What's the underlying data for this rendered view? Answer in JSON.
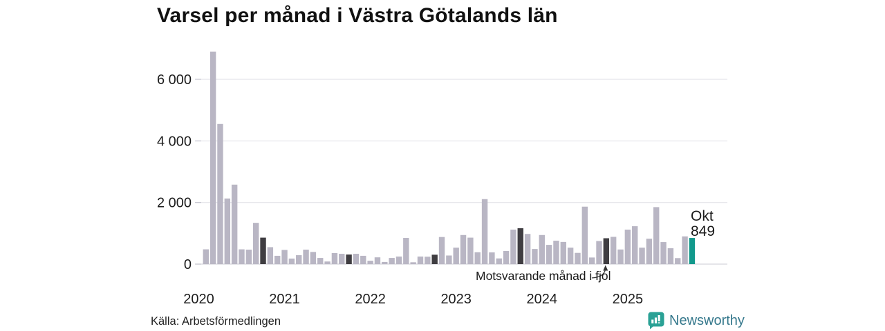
{
  "title": "Varsel per månad i Västra Götalands län",
  "source": "Källa: Arbetsförmedlingen",
  "branding": {
    "name": "Newsworthy"
  },
  "annotation": {
    "text": "Motsvarande månad i fjol"
  },
  "last_point_label": {
    "month": "Okt",
    "value": "849"
  },
  "colors": {
    "bar": "#b9b6c4",
    "bar_fjol": "#3f3d41",
    "bar_current": "#12998c",
    "grid": "#e4e4ea",
    "baseline": "#d5d5dc",
    "tick": "#c6c6d0",
    "text": "#1d1d1d",
    "arrow": "#333333",
    "brand_icon": "#2aa195",
    "brand_text": "#35788c"
  },
  "chart_data": {
    "type": "bar",
    "title": "Varsel per månad i Västra Götalands län",
    "xlabel": "",
    "ylabel": "",
    "ylim": [
      0,
      7200
    ],
    "grid": true,
    "y_ticks": [
      {
        "value": 0,
        "label": "0"
      },
      {
        "value": 2000,
        "label": "2 000"
      },
      {
        "value": 4000,
        "label": "4 000"
      },
      {
        "value": 6000,
        "label": "6 000"
      }
    ],
    "year_ticks": [
      {
        "label": "2020",
        "jan_index": -1
      },
      {
        "label": "2021",
        "jan_index": 11
      },
      {
        "label": "2022",
        "jan_index": 23
      },
      {
        "label": "2023",
        "jan_index": 35
      },
      {
        "label": "2024",
        "jan_index": 47
      },
      {
        "label": "2025",
        "jan_index": 59
      }
    ],
    "highlight_note": "dark bars mark October of each previous year; teal bar is the latest month (Okt 2025 = 849)",
    "bars": [
      {
        "label": "feb 2020",
        "value": 480,
        "style": "default"
      },
      {
        "label": "mar 2020",
        "value": 6900,
        "style": "default"
      },
      {
        "label": "apr 2020",
        "value": 4550,
        "style": "default"
      },
      {
        "label": "maj 2020",
        "value": 2130,
        "style": "default"
      },
      {
        "label": "jun 2020",
        "value": 2580,
        "style": "default"
      },
      {
        "label": "jul 2020",
        "value": 480,
        "style": "default"
      },
      {
        "label": "aug 2020",
        "value": 470,
        "style": "default"
      },
      {
        "label": "sep 2020",
        "value": 1340,
        "style": "default"
      },
      {
        "label": "okt 2020",
        "value": 860,
        "style": "fjol"
      },
      {
        "label": "nov 2020",
        "value": 550,
        "style": "default"
      },
      {
        "label": "dec 2020",
        "value": 270,
        "style": "default"
      },
      {
        "label": "jan 2021",
        "value": 460,
        "style": "default"
      },
      {
        "label": "feb 2021",
        "value": 180,
        "style": "default"
      },
      {
        "label": "mar 2021",
        "value": 290,
        "style": "default"
      },
      {
        "label": "apr 2021",
        "value": 470,
        "style": "default"
      },
      {
        "label": "maj 2021",
        "value": 395,
        "style": "default"
      },
      {
        "label": "jun 2021",
        "value": 200,
        "style": "default"
      },
      {
        "label": "jul 2021",
        "value": 85,
        "style": "default"
      },
      {
        "label": "aug 2021",
        "value": 360,
        "style": "default"
      },
      {
        "label": "sep 2021",
        "value": 335,
        "style": "default"
      },
      {
        "label": "okt 2021",
        "value": 310,
        "style": "fjol"
      },
      {
        "label": "nov 2021",
        "value": 335,
        "style": "default"
      },
      {
        "label": "dec 2021",
        "value": 270,
        "style": "default"
      },
      {
        "label": "jan 2022",
        "value": 110,
        "style": "default"
      },
      {
        "label": "feb 2022",
        "value": 220,
        "style": "default"
      },
      {
        "label": "mar 2022",
        "value": 70,
        "style": "default"
      },
      {
        "label": "apr 2022",
        "value": 200,
        "style": "default"
      },
      {
        "label": "maj 2022",
        "value": 245,
        "style": "default"
      },
      {
        "label": "jun 2022",
        "value": 850,
        "style": "default"
      },
      {
        "label": "jul 2022",
        "value": 60,
        "style": "default"
      },
      {
        "label": "aug 2022",
        "value": 245,
        "style": "default"
      },
      {
        "label": "sep 2022",
        "value": 240,
        "style": "default"
      },
      {
        "label": "okt 2022",
        "value": 305,
        "style": "fjol"
      },
      {
        "label": "nov 2022",
        "value": 880,
        "style": "default"
      },
      {
        "label": "dec 2022",
        "value": 280,
        "style": "default"
      },
      {
        "label": "jan 2023",
        "value": 535,
        "style": "default"
      },
      {
        "label": "feb 2023",
        "value": 945,
        "style": "default"
      },
      {
        "label": "mar 2023",
        "value": 860,
        "style": "default"
      },
      {
        "label": "apr 2023",
        "value": 385,
        "style": "default"
      },
      {
        "label": "maj 2023",
        "value": 2110,
        "style": "default"
      },
      {
        "label": "jun 2023",
        "value": 380,
        "style": "default"
      },
      {
        "label": "jul 2023",
        "value": 185,
        "style": "default"
      },
      {
        "label": "aug 2023",
        "value": 425,
        "style": "default"
      },
      {
        "label": "sep 2023",
        "value": 1120,
        "style": "default"
      },
      {
        "label": "okt 2023",
        "value": 1165,
        "style": "fjol"
      },
      {
        "label": "nov 2023",
        "value": 980,
        "style": "default"
      },
      {
        "label": "dec 2023",
        "value": 490,
        "style": "default"
      },
      {
        "label": "jan 2024",
        "value": 945,
        "style": "default"
      },
      {
        "label": "feb 2024",
        "value": 625,
        "style": "default"
      },
      {
        "label": "mar 2024",
        "value": 760,
        "style": "default"
      },
      {
        "label": "apr 2024",
        "value": 720,
        "style": "default"
      },
      {
        "label": "maj 2024",
        "value": 535,
        "style": "default"
      },
      {
        "label": "jun 2024",
        "value": 365,
        "style": "default"
      },
      {
        "label": "jul 2024",
        "value": 1865,
        "style": "default"
      },
      {
        "label": "aug 2024",
        "value": 215,
        "style": "default"
      },
      {
        "label": "sep 2024",
        "value": 750,
        "style": "default"
      },
      {
        "label": "okt 2024",
        "value": 840,
        "style": "fjol"
      },
      {
        "label": "nov 2024",
        "value": 885,
        "style": "default"
      },
      {
        "label": "dec 2024",
        "value": 475,
        "style": "default"
      },
      {
        "label": "jan 2025",
        "value": 1120,
        "style": "default"
      },
      {
        "label": "feb 2025",
        "value": 1230,
        "style": "default"
      },
      {
        "label": "mar 2025",
        "value": 535,
        "style": "default"
      },
      {
        "label": "apr 2025",
        "value": 825,
        "style": "default"
      },
      {
        "label": "maj 2025",
        "value": 1850,
        "style": "default"
      },
      {
        "label": "jun 2025",
        "value": 715,
        "style": "default"
      },
      {
        "label": "jul 2025",
        "value": 515,
        "style": "default"
      },
      {
        "label": "aug 2025",
        "value": 195,
        "style": "default"
      },
      {
        "label": "sep 2025",
        "value": 900,
        "style": "default"
      },
      {
        "label": "okt 2025",
        "value": 849,
        "style": "current"
      }
    ]
  }
}
